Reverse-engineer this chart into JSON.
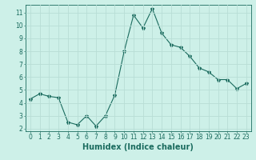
{
  "x": [
    0,
    1,
    2,
    3,
    4,
    5,
    6,
    7,
    8,
    9,
    10,
    11,
    12,
    13,
    14,
    15,
    16,
    17,
    18,
    19,
    20,
    21,
    22,
    23
  ],
  "y": [
    4.3,
    4.7,
    4.5,
    4.4,
    2.5,
    2.3,
    3.0,
    2.2,
    3.0,
    4.6,
    8.0,
    10.8,
    9.8,
    11.3,
    9.4,
    8.5,
    8.3,
    7.6,
    6.7,
    6.4,
    5.8,
    5.8,
    5.1,
    5.5
  ],
  "line_color": "#1a6b5e",
  "marker": "*",
  "marker_size": 3,
  "bg_color": "#cdf0e8",
  "grid_color": "#b8ddd6",
  "xlabel": "Humidex (Indice chaleur)",
  "xlim": [
    -0.5,
    23.5
  ],
  "ylim": [
    1.8,
    11.6
  ],
  "yticks": [
    2,
    3,
    4,
    5,
    6,
    7,
    8,
    9,
    10,
    11
  ],
  "xticks": [
    0,
    1,
    2,
    3,
    4,
    5,
    6,
    7,
    8,
    9,
    10,
    11,
    12,
    13,
    14,
    15,
    16,
    17,
    18,
    19,
    20,
    21,
    22,
    23
  ],
  "tick_color": "#1a6b5e",
  "xlabel_fontsize": 7,
  "tick_fontsize": 5.5
}
